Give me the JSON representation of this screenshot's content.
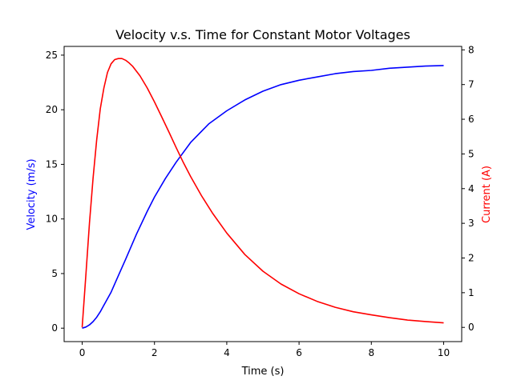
{
  "chart_data": {
    "type": "line",
    "title": "Velocity v.s. Time for Constant Motor Voltages",
    "xlabel": "Time (s)",
    "ylabel_left": "Velocity (m/s)",
    "ylabel_right": "Current (A)",
    "xlim": [
      -0.5,
      10.5
    ],
    "ylim_left": [
      -1.23,
      25.8
    ],
    "ylim_right": [
      -0.41,
      8.1
    ],
    "x_ticks": [
      0,
      2,
      4,
      6,
      8,
      10
    ],
    "y_ticks_left": [
      0,
      5,
      10,
      15,
      20,
      25
    ],
    "y_ticks_right": [
      0,
      1,
      2,
      3,
      4,
      5,
      6,
      7,
      8
    ],
    "grid": false,
    "colors": {
      "velocity": "#0000ff",
      "current": "#ff0000",
      "axis": "#000000"
    },
    "series": [
      {
        "axis": "left",
        "color": "#0000ff",
        "x": [
          0,
          0.1,
          0.2,
          0.3,
          0.4,
          0.5,
          0.6,
          0.8,
          1.0,
          1.2,
          1.5,
          1.8,
          2.0,
          2.3,
          2.6,
          3.0,
          3.5,
          4.0,
          4.5,
          5.0,
          5.5,
          6.0,
          6.5,
          7.0,
          7.5,
          8.0,
          8.5,
          9.0,
          9.5,
          10.0
        ],
        "values": [
          0.0,
          0.1,
          0.3,
          0.6,
          1.0,
          1.5,
          2.1,
          3.3,
          4.8,
          6.3,
          8.6,
          10.7,
          12.0,
          13.7,
          15.2,
          17.0,
          18.7,
          19.9,
          20.9,
          21.7,
          22.3,
          22.7,
          23.0,
          23.3,
          23.5,
          23.6,
          23.8,
          23.9,
          24.0,
          24.05
        ]
      },
      {
        "axis": "right",
        "color": "#ff0000",
        "x": [
          0,
          0.1,
          0.2,
          0.3,
          0.4,
          0.5,
          0.6,
          0.7,
          0.8,
          0.9,
          1.0,
          1.1,
          1.2,
          1.3,
          1.4,
          1.6,
          1.8,
          2.0,
          2.2,
          2.4,
          2.6,
          2.8,
          3.0,
          3.3,
          3.6,
          4.0,
          4.5,
          5.0,
          5.5,
          6.0,
          6.5,
          7.0,
          7.5,
          8.0,
          8.5,
          9.0,
          9.5,
          10.0
        ],
        "values": [
          0.0,
          1.5,
          3.0,
          4.3,
          5.4,
          6.3,
          6.9,
          7.35,
          7.6,
          7.72,
          7.75,
          7.75,
          7.7,
          7.62,
          7.52,
          7.25,
          6.9,
          6.5,
          6.07,
          5.63,
          5.18,
          4.75,
          4.35,
          3.8,
          3.3,
          2.72,
          2.1,
          1.62,
          1.25,
          0.97,
          0.75,
          0.58,
          0.45,
          0.36,
          0.28,
          0.21,
          0.17,
          0.13
        ]
      }
    ]
  }
}
